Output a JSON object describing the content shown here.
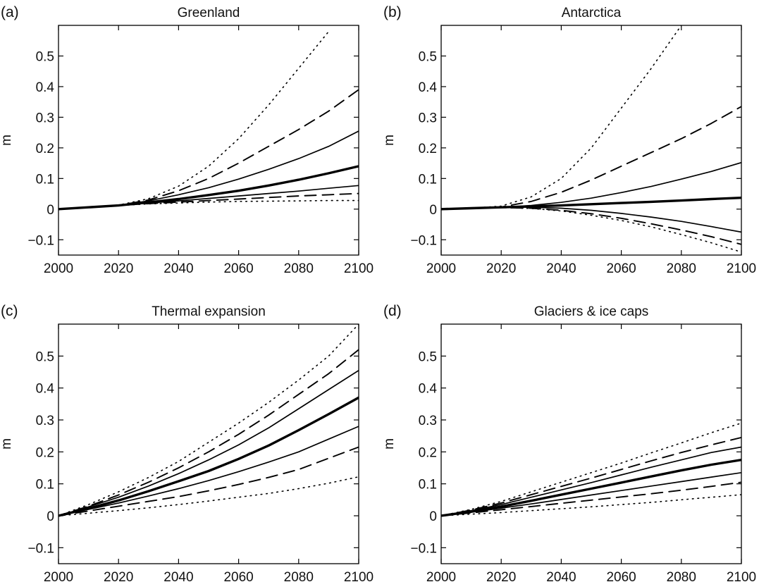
{
  "chart_data": [
    {
      "type": "line",
      "panel_label": "(a)",
      "title": "Greenland",
      "xlabel": "",
      "ylabel": "m",
      "xlim": [
        2000,
        2100
      ],
      "ylim": [
        -0.15,
        0.6
      ],
      "xticks": [
        2000,
        2020,
        2040,
        2060,
        2080,
        2100
      ],
      "yticks": [
        -0.1,
        0,
        0.1,
        0.2,
        0.3,
        0.4,
        0.5
      ],
      "yticklabels": [
        "−0.1",
        "0",
        "0.1",
        "0.2",
        "0.3",
        "0.4",
        "0.5"
      ],
      "x": [
        2000,
        2010,
        2020,
        2030,
        2040,
        2050,
        2060,
        2070,
        2080,
        2090,
        2100
      ],
      "series": [
        {
          "style": "dotted-upper",
          "values": [
            0,
            0.006,
            0.013,
            0.034,
            0.075,
            0.14,
            0.23,
            0.34,
            0.46,
            0.58,
            null
          ]
        },
        {
          "style": "dashed-upper",
          "values": [
            0,
            0.006,
            0.012,
            0.03,
            0.06,
            0.1,
            0.15,
            0.205,
            0.26,
            0.32,
            0.39
          ]
        },
        {
          "style": "solid-upper",
          "values": [
            0,
            0.006,
            0.012,
            0.027,
            0.047,
            0.07,
            0.098,
            0.13,
            0.165,
            0.205,
            0.255
          ]
        },
        {
          "style": "median",
          "values": [
            0,
            0.006,
            0.012,
            0.022,
            0.033,
            0.046,
            0.06,
            0.077,
            0.096,
            0.117,
            0.14
          ]
        },
        {
          "style": "solid-lower",
          "values": [
            0,
            0.006,
            0.012,
            0.02,
            0.027,
            0.035,
            0.043,
            0.051,
            0.059,
            0.068,
            0.077
          ]
        },
        {
          "style": "dashed-lower",
          "values": [
            0,
            0.006,
            0.012,
            0.018,
            0.023,
            0.028,
            0.033,
            0.038,
            0.043,
            0.047,
            0.051
          ]
        },
        {
          "style": "dotted-lower",
          "values": [
            0,
            0.006,
            0.012,
            0.017,
            0.02,
            0.023,
            0.025,
            0.026,
            0.027,
            0.028,
            0.028
          ]
        }
      ]
    },
    {
      "type": "line",
      "panel_label": "(b)",
      "title": "Antarctica",
      "xlabel": "",
      "ylabel": "m",
      "xlim": [
        2000,
        2100
      ],
      "ylim": [
        -0.15,
        0.6
      ],
      "xticks": [
        2000,
        2020,
        2040,
        2060,
        2080,
        2100
      ],
      "yticks": [
        -0.1,
        0,
        0.1,
        0.2,
        0.3,
        0.4,
        0.5
      ],
      "yticklabels": [
        "−0.1",
        "0",
        "0.1",
        "0.2",
        "0.3",
        "0.4",
        "0.5"
      ],
      "x": [
        2000,
        2010,
        2020,
        2030,
        2040,
        2050,
        2060,
        2070,
        2080,
        2090,
        2100
      ],
      "series": [
        {
          "style": "dotted-upper",
          "values": [
            0,
            0.003,
            0.01,
            0.04,
            0.1,
            0.2,
            0.33,
            0.46,
            0.6,
            null,
            null
          ]
        },
        {
          "style": "dashed-upper",
          "values": [
            0,
            0.003,
            0.007,
            0.025,
            0.055,
            0.095,
            0.14,
            0.185,
            0.23,
            0.28,
            0.335
          ]
        },
        {
          "style": "solid-upper",
          "values": [
            0,
            0.003,
            0.006,
            0.012,
            0.022,
            0.036,
            0.054,
            0.074,
            0.098,
            0.123,
            0.152
          ]
        },
        {
          "style": "median",
          "values": [
            0,
            0.003,
            0.006,
            0.009,
            0.012,
            0.016,
            0.02,
            0.024,
            0.028,
            0.033,
            0.037
          ]
        },
        {
          "style": "solid-lower",
          "values": [
            0,
            0.003,
            0.006,
            0.006,
            0.003,
            -0.004,
            -0.014,
            -0.026,
            -0.04,
            -0.057,
            -0.075
          ]
        },
        {
          "style": "dashed-lower",
          "values": [
            0,
            0.003,
            0.005,
            0.003,
            -0.004,
            -0.015,
            -0.03,
            -0.048,
            -0.068,
            -0.09,
            -0.115
          ]
        },
        {
          "style": "dotted-lower",
          "values": [
            0,
            0.003,
            0.005,
            0.002,
            -0.006,
            -0.02,
            -0.037,
            -0.058,
            -0.083,
            -0.11,
            -0.14
          ]
        }
      ]
    },
    {
      "type": "line",
      "panel_label": "(c)",
      "title": "Thermal expansion",
      "xlabel": "",
      "ylabel": "m",
      "xlim": [
        2000,
        2100
      ],
      "ylim": [
        -0.15,
        0.6
      ],
      "xticks": [
        2000,
        2020,
        2040,
        2060,
        2080,
        2100
      ],
      "yticks": [
        -0.1,
        0,
        0.1,
        0.2,
        0.3,
        0.4,
        0.5
      ],
      "yticklabels": [
        "−0.1",
        "0",
        "0.1",
        "0.2",
        "0.3",
        "0.4",
        "0.5"
      ],
      "x": [
        2000,
        2010,
        2020,
        2030,
        2040,
        2050,
        2060,
        2070,
        2080,
        2090,
        2100
      ],
      "series": [
        {
          "style": "dotted-upper",
          "values": [
            0,
            0.035,
            0.075,
            0.12,
            0.17,
            0.23,
            0.29,
            0.355,
            0.425,
            0.5,
            0.6
          ]
        },
        {
          "style": "dashed-upper",
          "values": [
            0,
            0.03,
            0.065,
            0.105,
            0.15,
            0.2,
            0.255,
            0.315,
            0.38,
            0.445,
            0.52
          ]
        },
        {
          "style": "solid-upper",
          "values": [
            0,
            0.028,
            0.058,
            0.093,
            0.132,
            0.175,
            0.222,
            0.275,
            0.335,
            0.395,
            0.455
          ]
        },
        {
          "style": "median",
          "values": [
            0,
            0.023,
            0.048,
            0.077,
            0.108,
            0.14,
            0.178,
            0.22,
            0.268,
            0.318,
            0.37
          ]
        },
        {
          "style": "solid-lower",
          "values": [
            0,
            0.02,
            0.04,
            0.062,
            0.085,
            0.11,
            0.138,
            0.168,
            0.2,
            0.24,
            0.28
          ]
        },
        {
          "style": "dashed-lower",
          "values": [
            0,
            0.015,
            0.03,
            0.045,
            0.06,
            0.078,
            0.098,
            0.12,
            0.145,
            0.18,
            0.215
          ]
        },
        {
          "style": "dotted-lower",
          "values": [
            0,
            0.008,
            0.016,
            0.025,
            0.035,
            0.046,
            0.058,
            0.07,
            0.085,
            0.102,
            0.122
          ]
        }
      ]
    },
    {
      "type": "line",
      "panel_label": "(d)",
      "title": "Glaciers & ice caps",
      "xlabel": "",
      "ylabel": "m",
      "xlim": [
        2000,
        2100
      ],
      "ylim": [
        -0.15,
        0.6
      ],
      "xticks": [
        2000,
        2020,
        2040,
        2060,
        2080,
        2100
      ],
      "yticks": [
        -0.1,
        0,
        0.1,
        0.2,
        0.3,
        0.4,
        0.5
      ],
      "yticklabels": [
        "−0.1",
        "0",
        "0.1",
        "0.2",
        "0.3",
        "0.4",
        "0.5"
      ],
      "x": [
        2000,
        2010,
        2020,
        2030,
        2040,
        2050,
        2060,
        2070,
        2080,
        2090,
        2100
      ],
      "series": [
        {
          "style": "dotted-upper",
          "values": [
            0,
            0.02,
            0.045,
            0.075,
            0.105,
            0.135,
            0.165,
            0.197,
            0.228,
            0.26,
            0.29
          ]
        },
        {
          "style": "dashed-upper",
          "values": [
            0,
            0.018,
            0.04,
            0.066,
            0.092,
            0.118,
            0.145,
            0.172,
            0.198,
            0.222,
            0.245
          ]
        },
        {
          "style": "solid-upper",
          "values": [
            0,
            0.016,
            0.035,
            0.058,
            0.081,
            0.104,
            0.128,
            0.152,
            0.175,
            0.198,
            0.215
          ]
        },
        {
          "style": "median",
          "values": [
            0,
            0.013,
            0.029,
            0.047,
            0.066,
            0.085,
            0.104,
            0.123,
            0.142,
            0.16,
            0.175
          ]
        },
        {
          "style": "solid-lower",
          "values": [
            0,
            0.011,
            0.024,
            0.037,
            0.051,
            0.065,
            0.079,
            0.093,
            0.107,
            0.121,
            0.135
          ]
        },
        {
          "style": "dashed-lower",
          "values": [
            0,
            0.009,
            0.019,
            0.029,
            0.039,
            0.049,
            0.059,
            0.069,
            0.08,
            0.092,
            0.105
          ]
        },
        {
          "style": "dotted-lower",
          "values": [
            0,
            0.005,
            0.01,
            0.016,
            0.022,
            0.028,
            0.035,
            0.042,
            0.05,
            0.058,
            0.066
          ]
        }
      ]
    }
  ]
}
